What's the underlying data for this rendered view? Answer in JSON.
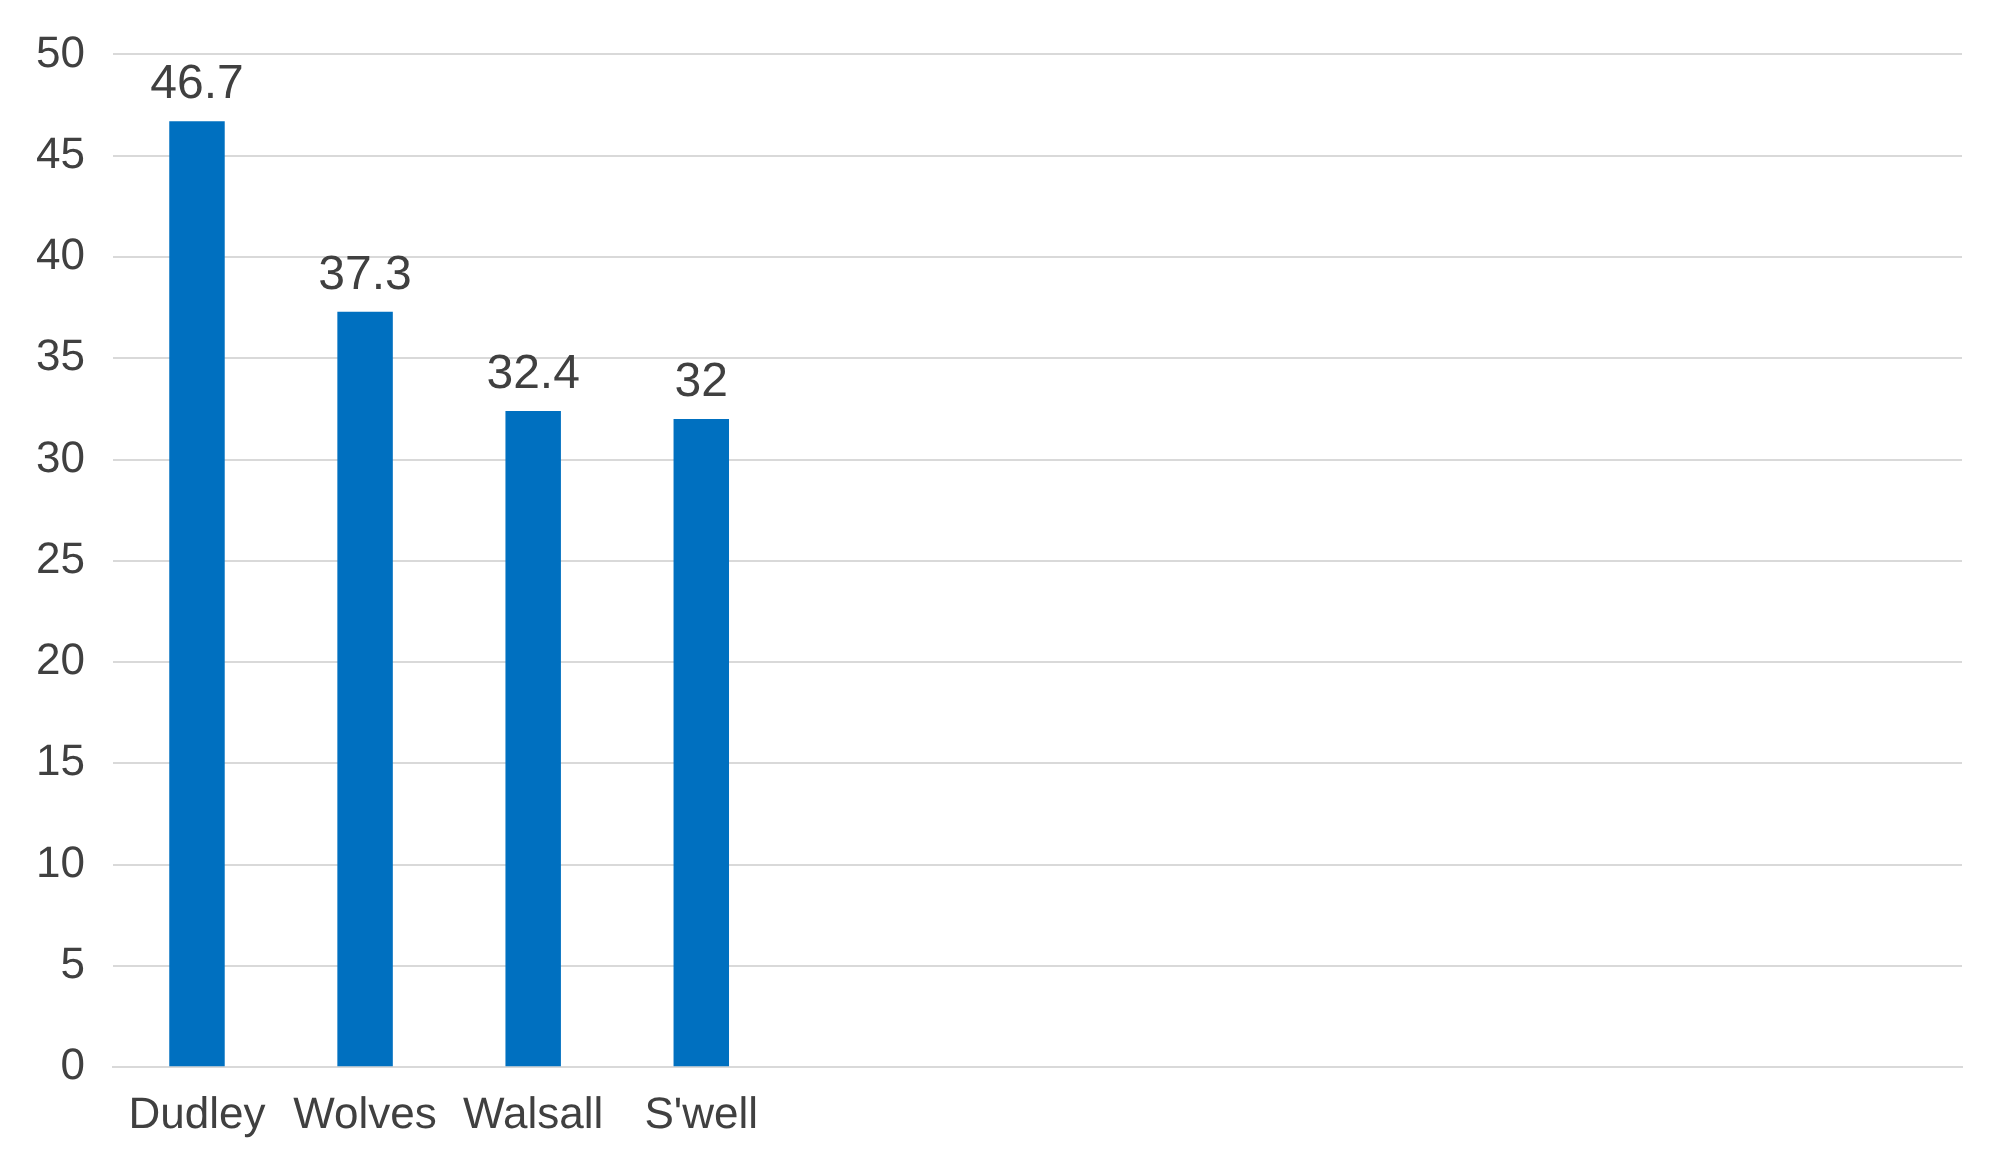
{
  "chart_data": {
    "type": "bar",
    "categories": [
      "Dudley",
      "Wolves",
      "Walsall",
      "S'well",
      null,
      null,
      null,
      null,
      null,
      null,
      null
    ],
    "values": [
      46.7,
      37.3,
      32.4,
      32,
      null,
      null,
      null,
      null,
      null,
      null,
      null
    ],
    "color": "#0070c0",
    "ylim": [
      0,
      50
    ],
    "yticks": [
      0,
      5,
      10,
      15,
      20,
      25,
      30,
      35,
      40,
      45,
      50
    ],
    "grid": "y",
    "data_labels": true,
    "legend": false
  }
}
